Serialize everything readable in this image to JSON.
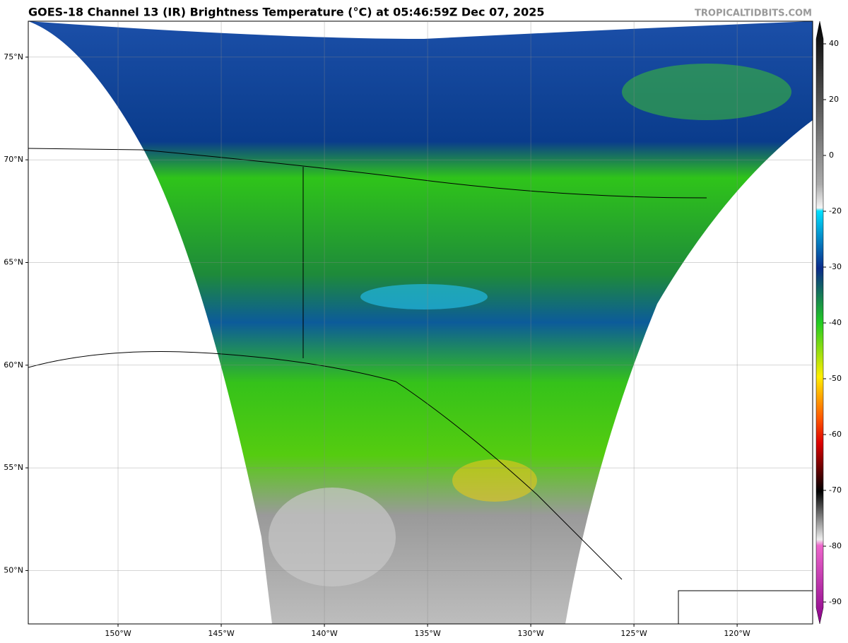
{
  "header": {
    "title": "GOES-18 Channel 13 (IR) Brightness Temperature (°C) at 05:46:59Z Dec 07, 2025",
    "watermark": "TROPICALTIDBITS.COM"
  },
  "map": {
    "xlim": [
      -154.35,
      -116.34
    ],
    "ylim": [
      47.4,
      76.75
    ],
    "xticks": [
      {
        "value": -150,
        "label": "150°W"
      },
      {
        "value": -145,
        "label": "145°W"
      },
      {
        "value": -140,
        "label": "140°W"
      },
      {
        "value": -135,
        "label": "135°W"
      },
      {
        "value": -130,
        "label": "130°W"
      },
      {
        "value": -125,
        "label": "125°W"
      },
      {
        "value": -120,
        "label": "120°W"
      }
    ],
    "yticks": [
      {
        "value": 50,
        "label": "50°N"
      },
      {
        "value": 55,
        "label": "55°N"
      },
      {
        "value": 60,
        "label": "60°N"
      },
      {
        "value": 65,
        "label": "65°N"
      },
      {
        "value": 70,
        "label": "70°N"
      },
      {
        "value": 75,
        "label": "75°N"
      }
    ]
  },
  "colorbar": {
    "ticks": [
      40,
      20,
      0,
      -20,
      -30,
      -40,
      -50,
      -60,
      -70,
      -80,
      -90
    ]
  }
}
